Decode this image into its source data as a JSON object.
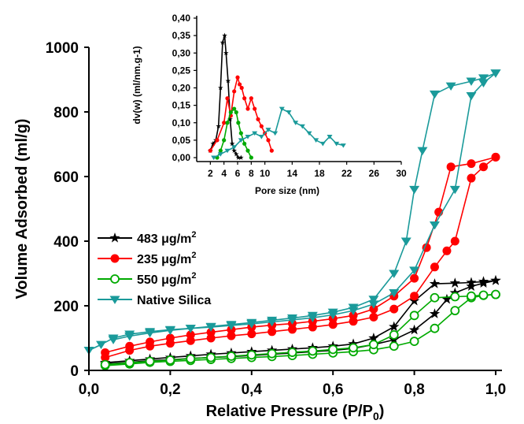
{
  "chart_data": [
    {
      "type": "line",
      "title": "",
      "xlabel": "Relative Pressure (P/P",
      "xlabel_sub": "0",
      "xlabel_suffix": ")",
      "ylabel": "Volume Adsorbed (ml/g)",
      "xlim": [
        0,
        1.0
      ],
      "ylim": [
        0,
        1000
      ],
      "xticks": [
        "0,0",
        "0,2",
        "0,4",
        "0,6",
        "0,8",
        "1,0"
      ],
      "xtick_values": [
        0,
        0.2,
        0.4,
        0.6,
        0.8,
        1.0
      ],
      "yticks": [
        "0",
        "200",
        "400",
        "600",
        "800",
        "1000"
      ],
      "ytick_values": [
        0,
        200,
        400,
        600,
        800,
        1000
      ],
      "grid": false,
      "legend_position": "left-center",
      "series": [
        {
          "name": "483 μg/m",
          "name_sup": "2",
          "color": "#000000",
          "marker": "star",
          "adsorption": {
            "x": [
              0.04,
              0.1,
              0.15,
              0.2,
              0.25,
              0.3,
              0.35,
              0.4,
              0.45,
              0.5,
              0.55,
              0.6,
              0.65,
              0.7,
              0.75,
              0.8,
              0.85,
              0.88,
              0.9,
              0.94,
              0.97,
              1.0
            ],
            "y": [
              20,
              25,
              30,
              33,
              37,
              40,
              43,
              46,
              50,
              54,
              58,
              62,
              68,
              80,
              95,
              125,
              175,
              220,
              240,
              260,
              270,
              278
            ]
          },
          "desorption": {
            "x": [
              1.0,
              0.97,
              0.94,
              0.9,
              0.85,
              0.8,
              0.75,
              0.7,
              0.65,
              0.6,
              0.55,
              0.5,
              0.45,
              0.4,
              0.35,
              0.3,
              0.25,
              0.2,
              0.15,
              0.1,
              0.04
            ],
            "y": [
              278,
              275,
              272,
              270,
              268,
              215,
              135,
              100,
              82,
              75,
              70,
              66,
              62,
              58,
              54,
              50,
              45,
              40,
              35,
              30,
              24
            ]
          }
        },
        {
          "name": "235 μg/m",
          "name_sup": "2",
          "color": "#ff0000",
          "marker": "circle",
          "adsorption": {
            "x": [
              0.04,
              0.1,
              0.15,
              0.2,
              0.25,
              0.3,
              0.35,
              0.4,
              0.45,
              0.5,
              0.55,
              0.6,
              0.65,
              0.7,
              0.75,
              0.8,
              0.85,
              0.88,
              0.9,
              0.94,
              0.97,
              1.0
            ],
            "y": [
              40,
              62,
              75,
              84,
              92,
              100,
              107,
              113,
              120,
              127,
              134,
              142,
              152,
              165,
              190,
              230,
              320,
              370,
              400,
              595,
              630,
              660
            ]
          },
          "desorption": {
            "x": [
              1.0,
              0.94,
              0.89,
              0.86,
              0.83,
              0.8,
              0.75,
              0.7,
              0.65,
              0.6,
              0.55,
              0.5,
              0.45,
              0.4,
              0.35,
              0.3,
              0.25,
              0.2,
              0.15,
              0.1,
              0.04
            ],
            "y": [
              660,
              640,
              630,
              490,
              380,
              285,
              230,
              190,
              170,
              160,
              152,
              145,
              140,
              134,
              126,
              118,
              110,
              100,
              88,
              75,
              55
            ]
          }
        },
        {
          "name": "550 μg/m",
          "name_sup": "2",
          "color": "#00aa00",
          "marker": "circle-open",
          "adsorption": {
            "x": [
              0.04,
              0.1,
              0.15,
              0.2,
              0.25,
              0.3,
              0.35,
              0.4,
              0.45,
              0.5,
              0.55,
              0.6,
              0.65,
              0.7,
              0.75,
              0.8,
              0.85,
              0.9,
              0.94,
              0.97,
              1.0
            ],
            "y": [
              15,
              20,
              25,
              28,
              31,
              34,
              37,
              40,
              43,
              46,
              50,
              54,
              58,
              64,
              75,
              90,
              130,
              185,
              225,
              232,
              235
            ]
          },
          "desorption": {
            "x": [
              1.0,
              0.97,
              0.94,
              0.9,
              0.85,
              0.8,
              0.75,
              0.7,
              0.65,
              0.6,
              0.55,
              0.5,
              0.45,
              0.4,
              0.35,
              0.3,
              0.25,
              0.2,
              0.15,
              0.1,
              0.04
            ],
            "y": [
              235,
              233,
              230,
              228,
              225,
              170,
              110,
              80,
              70,
              65,
              60,
              56,
              52,
              48,
              44,
              40,
              36,
              32,
              28,
              24,
              18
            ]
          }
        },
        {
          "name": "Native Silica",
          "color": "#1a9a9a",
          "marker": "triangle-down",
          "adsorption": {
            "x": [
              0.0,
              0.03,
              0.06,
              0.1,
              0.15,
              0.2,
              0.25,
              0.3,
              0.35,
              0.4,
              0.45,
              0.5,
              0.55,
              0.6,
              0.65,
              0.7,
              0.75,
              0.8,
              0.85,
              0.9,
              0.94,
              0.97,
              1.0
            ],
            "y": [
              62,
              80,
              100,
              112,
              120,
              126,
              130,
              134,
              139,
              144,
              150,
              156,
              163,
              172,
              185,
              205,
              240,
              310,
              450,
              560,
              850,
              890,
              920
            ]
          },
          "desorption": {
            "x": [
              1.0,
              0.97,
              0.94,
              0.89,
              0.85,
              0.82,
              0.8,
              0.78,
              0.75,
              0.7,
              0.65,
              0.6,
              0.55,
              0.5,
              0.45,
              0.4,
              0.35,
              0.3,
              0.25,
              0.2,
              0.15,
              0.1,
              0.06
            ],
            "y": [
              920,
              905,
              895,
              880,
              855,
              680,
              560,
              400,
              300,
              220,
              195,
              180,
              170,
              162,
              155,
              148,
              142,
              136,
              130,
              124,
              116,
              106,
              95
            ]
          }
        }
      ]
    },
    {
      "type": "line",
      "title": "",
      "xlabel": "Pore size (nm)",
      "ylabel": "dv(w) (ml/nm.g-1)",
      "xlim": [
        0,
        30
      ],
      "ylim": [
        0,
        0.4
      ],
      "xticks": [
        "2",
        "4",
        "6",
        "8",
        "10",
        "14",
        "18",
        "22",
        "26",
        "30"
      ],
      "xtick_values": [
        2,
        4,
        6,
        8,
        10,
        14,
        18,
        22,
        26,
        30
      ],
      "yticks": [
        "0,00",
        "0,05",
        "0,10",
        "0,15",
        "0,20",
        "0,25",
        "0,30",
        "0,35",
        "0,40"
      ],
      "ytick_values": [
        0,
        0.05,
        0.1,
        0.15,
        0.2,
        0.25,
        0.3,
        0.35,
        0.4
      ],
      "grid": false,
      "series": [
        {
          "color": "#000000",
          "x": [
            2.0,
            2.4,
            2.8,
            3.2,
            3.5,
            3.8,
            4.1,
            4.3,
            4.6,
            4.9,
            5.2,
            5.5,
            5.8,
            6.1,
            6.5
          ],
          "y": [
            0.02,
            0.04,
            0.05,
            0.09,
            0.2,
            0.33,
            0.35,
            0.3,
            0.22,
            0.11,
            0.04,
            0.02,
            0.01,
            0.0,
            0.0
          ]
        },
        {
          "color": "#ff0000",
          "x": [
            2.0,
            3.0,
            4.0,
            4.5,
            5.0,
            5.5,
            6.0,
            6.3,
            6.6,
            7.0,
            7.5,
            8.0,
            8.5,
            9.0,
            9.5,
            10.0,
            10.5,
            11.0
          ],
          "y": [
            0.02,
            0.05,
            0.1,
            0.17,
            0.12,
            0.19,
            0.23,
            0.21,
            0.2,
            0.17,
            0.14,
            0.17,
            0.14,
            0.11,
            0.09,
            0.07,
            0.05,
            0.02
          ]
        },
        {
          "color": "#00aa00",
          "x": [
            3.0,
            3.5,
            4.0,
            4.5,
            5.0,
            5.5,
            5.8,
            6.1,
            6.5,
            7.0,
            7.5,
            8.0
          ],
          "y": [
            0.0,
            0.02,
            0.05,
            0.1,
            0.13,
            0.14,
            0.13,
            0.1,
            0.07,
            0.04,
            0.02,
            0.0
          ]
        },
        {
          "color": "#1a9a9a",
          "x": [
            2.5,
            3.5,
            4.5,
            5.5,
            6.5,
            7.5,
            8.5,
            9.5,
            10.5,
            11.5,
            12.5,
            13.5,
            14.5,
            15.5,
            16.5,
            17.5,
            18.5,
            19.5,
            20.5,
            21.5
          ],
          "y": [
            0.0,
            0.01,
            0.02,
            0.03,
            0.05,
            0.06,
            0.07,
            0.06,
            0.08,
            0.07,
            0.14,
            0.13,
            0.1,
            0.09,
            0.07,
            0.05,
            0.04,
            0.06,
            0.04,
            0.035
          ]
        }
      ]
    }
  ]
}
